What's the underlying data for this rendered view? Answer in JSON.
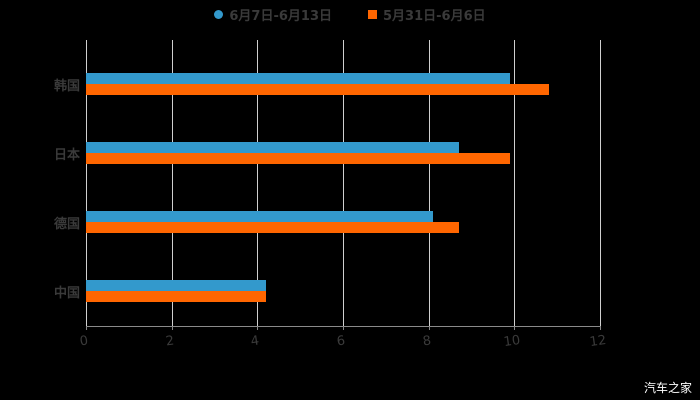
{
  "chart_data": {
    "type": "bar",
    "orientation": "horizontal",
    "title": "",
    "categories": [
      "韩国",
      "日本",
      "德国",
      "中国"
    ],
    "series": [
      {
        "name": "6月7日-6月13日",
        "color": "#3399cc",
        "values": [
          9.9,
          8.7,
          8.1,
          4.2
        ]
      },
      {
        "name": "5月31日-6月6日",
        "color": "#ff6600",
        "values": [
          10.8,
          9.9,
          8.7,
          4.2
        ]
      }
    ],
    "xlabel": "",
    "ylabel": "",
    "xlim": [
      0,
      12
    ],
    "x_ticks": [
      "0",
      "2",
      "4",
      "6",
      "8",
      "10",
      "12"
    ],
    "grid": true,
    "legend_position": "top"
  },
  "legend": {
    "series1": "6月7日-6月13日",
    "series2": "5月31日-6月6日"
  },
  "watermark": "汽车之家"
}
